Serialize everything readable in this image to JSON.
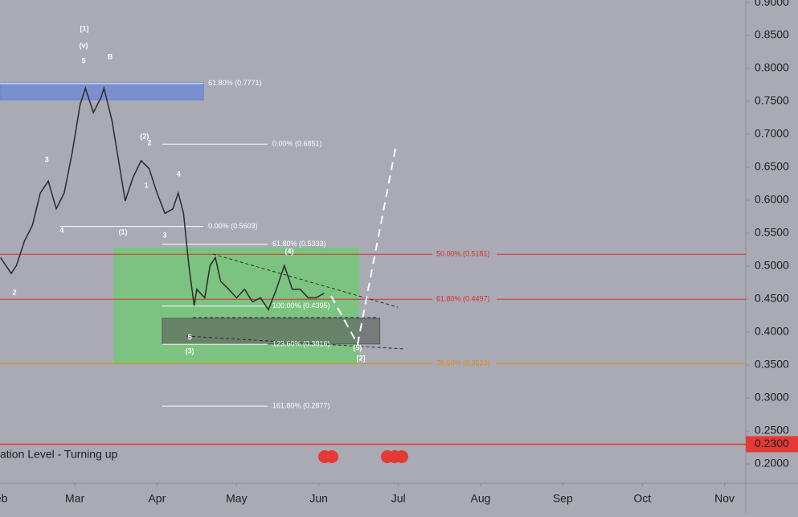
{
  "chart_data": {
    "type": "line",
    "color": "#2b2b2b",
    "x": [
      33,
      37,
      39,
      42,
      45,
      48,
      51,
      54,
      57,
      60,
      63,
      65,
      68,
      71,
      72,
      75,
      78,
      80,
      83,
      86,
      89,
      92,
      95,
      98,
      100,
      102,
      104,
      106,
      107,
      110,
      112,
      114,
      116,
      119,
      122,
      125,
      128,
      131,
      134,
      137,
      140,
      143,
      146,
      149,
      152,
      155
    ],
    "values": [
      0.513,
      0.489,
      0.501,
      0.538,
      0.562,
      0.611,
      0.629,
      0.587,
      0.611,
      0.672,
      0.745,
      0.77,
      0.733,
      0.757,
      0.77,
      0.721,
      0.648,
      0.599,
      0.635,
      0.66,
      0.648,
      0.611,
      0.58,
      0.587,
      0.611,
      0.58,
      0.501,
      0.44,
      0.465,
      0.452,
      0.501,
      0.513,
      0.477,
      0.465,
      0.452,
      0.465,
      0.446,
      0.452,
      0.434,
      0.465,
      0.501,
      0.465,
      0.465,
      0.452,
      0.452,
      0.459
    ],
    "xlim": [
      32.8,
      314
    ],
    "xticks": [
      {
        "value": 32,
        "label": "Feb"
      },
      {
        "value": 61,
        "label": "Mar"
      },
      {
        "value": 92,
        "label": "Apr"
      },
      {
        "value": 122,
        "label": "May"
      },
      {
        "value": 153,
        "label": "Jun"
      },
      {
        "value": 183,
        "label": "Jul"
      },
      {
        "value": 214,
        "label": "Aug"
      },
      {
        "value": 245,
        "label": "Sep"
      },
      {
        "value": 275,
        "label": "Oct"
      },
      {
        "value": 306,
        "label": "Nov"
      }
    ],
    "ylim": [
      0.172,
      0.9037
    ],
    "yticks": [
      {
        "value": 0.9,
        "label": "0.9000"
      },
      {
        "value": 0.85,
        "label": "0.8500"
      },
      {
        "value": 0.8,
        "label": "0.8000"
      },
      {
        "value": 0.75,
        "label": "0.7500"
      },
      {
        "value": 0.7,
        "label": "0.7000"
      },
      {
        "value": 0.65,
        "label": "0.6500"
      },
      {
        "value": 0.6,
        "label": "0.6000"
      },
      {
        "value": 0.55,
        "label": "0.5500"
      },
      {
        "value": 0.5,
        "label": "0.5000"
      },
      {
        "value": 0.45,
        "label": "0.4500"
      },
      {
        "value": 0.4,
        "label": "0.4000"
      },
      {
        "value": 0.35,
        "label": "0.3500"
      },
      {
        "value": 0.3,
        "label": "0.3000"
      },
      {
        "value": 0.25,
        "label": "0.2500"
      },
      {
        "value": 0.2,
        "label": "0.2000"
      }
    ],
    "zones": [
      {
        "from": 32.8,
        "to": 109.5,
        "top": 0.778,
        "bottom": 0.7525,
        "color": "#5b7fe0"
      },
      {
        "from": 76,
        "to": 168,
        "top": 0.527,
        "bottom": 0.353,
        "color": "#5fd35f"
      },
      {
        "from": 94,
        "to": 176,
        "top": 0.421,
        "bottom": 0.382,
        "color": "#5a5a5a"
      }
    ],
    "levels": [
      {
        "value": 0.7771,
        "label": "61.80% (0.7771)",
        "color": "#ffffff",
        "from": 32.8,
        "to": 109.5
      },
      {
        "value": 0.6851,
        "label": "0.00% (0.6851)",
        "color": "#ffffff",
        "from": 94,
        "to": 133.7
      },
      {
        "value": 0.5603,
        "label": "0.00% (0.5603)",
        "color": "#ffffff",
        "from": 55.5,
        "to": 109.5
      },
      {
        "value": 0.5333,
        "label": "61.80% (0.5333)",
        "color": "#ffffff",
        "from": 94,
        "to": 133.7
      },
      {
        "value": 0.5181,
        "label": "50.00% (0.5181)",
        "color": "#d32f2f",
        "from": 32.8,
        "to": 314
      },
      {
        "value": 0.4497,
        "label": "61.80% (0.4497)",
        "color": "#d32f2f",
        "from": 32.8,
        "to": 314
      },
      {
        "value": 0.4395,
        "label": "100.00% (0.4395)",
        "color": "#ffffff",
        "from": 94,
        "to": 133.7
      },
      {
        "value": 0.3816,
        "label": "123.60% (0.3816)",
        "color": "#ffffff",
        "from": 94,
        "to": 133.7
      },
      {
        "value": 0.3523,
        "label": "78.60% (0.3523)",
        "color": "#e08a00",
        "from": 32.8,
        "to": 314
      },
      {
        "value": 0.2877,
        "label": "161.80% (0.2877)",
        "color": "#ffffff",
        "from": 94,
        "to": 133.7
      }
    ],
    "price_line": {
      "value": 0.23,
      "label": "0.2300",
      "color": "#e53935"
    },
    "waves": [
      {
        "text": "[1]",
        "x": 64.6,
        "y": 0.8598
      },
      {
        "text": "(v)",
        "x": 64.3,
        "y": 0.8342
      },
      {
        "text": "5",
        "x": 64.3,
        "y": 0.811
      },
      {
        "text": "B",
        "x": 74.3,
        "y": 0.8171
      },
      {
        "text": "3",
        "x": 50.4,
        "y": 0.661
      },
      {
        "text": "4",
        "x": 56.1,
        "y": 0.5537
      },
      {
        "text": "2",
        "x": 38.3,
        "y": 0.4598
      },
      {
        "text": "(2)",
        "x": 87.3,
        "y": 0.6964
      },
      {
        "text": "2",
        "x": 89.2,
        "y": 0.6866
      },
      {
        "text": "1",
        "x": 88,
        "y": 0.622
      },
      {
        "text": "4",
        "x": 100.1,
        "y": 0.639
      },
      {
        "text": "(1)",
        "x": 79.2,
        "y": 0.5513
      },
      {
        "text": "3",
        "x": 94.9,
        "y": 0.5464
      },
      {
        "text": "5",
        "x": 104.3,
        "y": 0.3915
      },
      {
        "text": "(3)",
        "x": 104.3,
        "y": 0.3708
      },
      {
        "text": "(4)",
        "x": 141.9,
        "y": 0.522
      },
      {
        "text": "(5)",
        "x": 167.6,
        "y": 0.3756
      },
      {
        "text": "[2]",
        "x": 168.9,
        "y": 0.3598
      }
    ],
    "indicator_label": "ation Level - Turning up"
  }
}
